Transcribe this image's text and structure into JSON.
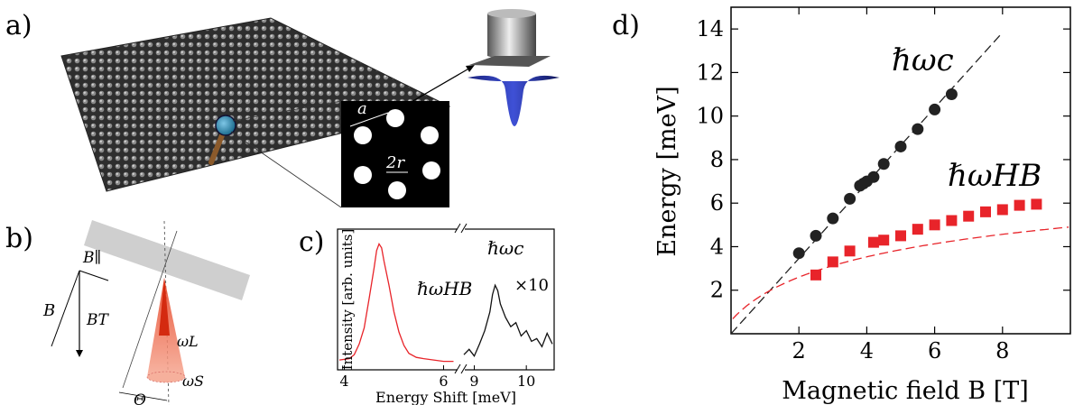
{
  "panels": {
    "a": "a)",
    "b": "b)",
    "c": "c)",
    "d": "d)"
  },
  "panel_a": {
    "lattice_spacing_label": "a",
    "diameter_label": "2r"
  },
  "panel_b": {
    "B_label": "B",
    "B_parallel_label": "B∥",
    "B_T_label": "BT",
    "omega_L_label": "ωL",
    "omega_S_label": "ωS",
    "theta_label": "Θ"
  },
  "colors": {
    "black_series": "#222222",
    "red_series": "#e8242a",
    "laser": "#ee4a2a",
    "gaussian": "#2a35a8"
  },
  "chart_data": [
    {
      "type": "line",
      "panel": "c",
      "xlabel": "Energy Shift [meV]",
      "ylabel": "Intensity [arb. units]",
      "axis_break": true,
      "x_ticks_left": [
        4,
        6
      ],
      "x_ticks_right": [
        9,
        10
      ],
      "xlim_left": [
        3.9,
        6.3
      ],
      "xlim_right": [
        8.8,
        10.5
      ],
      "annotations": [
        "ℏωHB",
        "ℏωc",
        "×10"
      ],
      "series": [
        {
          "color": "#e8242a",
          "x": [
            3.9,
            4.1,
            4.2,
            4.3,
            4.4,
            4.5,
            4.6,
            4.65,
            4.7,
            4.75,
            4.8,
            4.9,
            5.0,
            5.1,
            5.2,
            5.3,
            5.45,
            5.6,
            5.8,
            6.0,
            6.2
          ],
          "y": [
            0.06,
            0.07,
            0.1,
            0.18,
            0.3,
            0.52,
            0.75,
            0.88,
            0.93,
            0.9,
            0.8,
            0.62,
            0.42,
            0.27,
            0.17,
            0.11,
            0.08,
            0.07,
            0.06,
            0.05,
            0.05
          ]
        },
        {
          "color": "#111111",
          "x": [
            8.8,
            8.9,
            9.0,
            9.1,
            9.2,
            9.3,
            9.35,
            9.4,
            9.45,
            9.5,
            9.6,
            9.7,
            9.8,
            9.9,
            10.0,
            10.1,
            10.2,
            10.3,
            10.4,
            10.5
          ],
          "y": [
            0.1,
            0.14,
            0.09,
            0.18,
            0.28,
            0.42,
            0.55,
            0.62,
            0.58,
            0.48,
            0.38,
            0.31,
            0.34,
            0.24,
            0.28,
            0.2,
            0.22,
            0.16,
            0.26,
            0.18
          ]
        }
      ]
    },
    {
      "type": "scatter",
      "panel": "d",
      "xlabel": "Magnetic field B [T]",
      "ylabel": "Energy [meV]",
      "xlim": [
        0,
        10
      ],
      "ylim": [
        0,
        15
      ],
      "x_ticks": [
        2,
        4,
        6,
        8
      ],
      "y_ticks": [
        2,
        4,
        6,
        8,
        10,
        12,
        14
      ],
      "series": [
        {
          "name": "ℏωc",
          "marker": "circle",
          "color": "#222222",
          "points": [
            [
              2.0,
              3.7
            ],
            [
              2.5,
              4.5
            ],
            [
              3.0,
              5.3
            ],
            [
              3.5,
              6.2
            ],
            [
              3.8,
              6.8
            ],
            [
              3.9,
              6.9
            ],
            [
              4.0,
              7.0
            ],
            [
              4.2,
              7.2
            ],
            [
              4.5,
              7.8
            ],
            [
              5.0,
              8.6
            ],
            [
              5.5,
              9.4
            ],
            [
              6.0,
              10.3
            ],
            [
              6.5,
              11.0
            ]
          ]
        },
        {
          "name": "ℏωHB",
          "marker": "square",
          "color": "#e8242a",
          "points": [
            [
              2.5,
              2.7
            ],
            [
              3.0,
              3.3
            ],
            [
              3.5,
              3.8
            ],
            [
              4.2,
              4.2
            ],
            [
              4.5,
              4.3
            ],
            [
              5.0,
              4.5
            ],
            [
              5.5,
              4.8
            ],
            [
              6.0,
              5.0
            ],
            [
              6.5,
              5.2
            ],
            [
              7.0,
              5.4
            ],
            [
              7.5,
              5.6
            ],
            [
              8.0,
              5.7
            ],
            [
              8.5,
              5.9
            ],
            [
              9.0,
              5.95
            ]
          ]
        }
      ],
      "fits": [
        {
          "color": "#222222",
          "dash": true,
          "x": [
            0,
            8
          ],
          "slope": 1.73
        },
        {
          "color": "#e8242a",
          "dash": true,
          "x": [
            0,
            10
          ],
          "form": "hybrid"
        }
      ],
      "annotations": [
        "ℏωc",
        "ℏωHB"
      ]
    }
  ]
}
